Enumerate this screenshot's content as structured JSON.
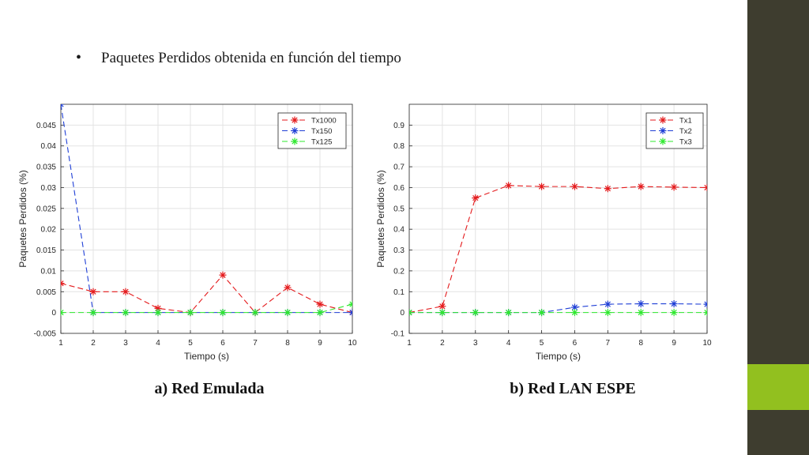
{
  "slide": {
    "bullet_symbol": "•",
    "bullet_text": "Paquetes Perdidos obtenida en función del tiempo",
    "caption_left": "a) Red Emulada",
    "caption_right": "b) Red LAN ESPE",
    "colors": {
      "sidebar": "#3e3d2f",
      "accent": "#92c01f"
    }
  },
  "chart_data": [
    {
      "type": "line",
      "title": "",
      "xlabel": "Tiempo (s)",
      "ylabel": "Paquetes Perdidos (%)",
      "xlim": [
        1,
        10
      ],
      "ylim": [
        -0.005,
        0.05
      ],
      "xticks": [
        1,
        2,
        3,
        4,
        5,
        6,
        7,
        8,
        9,
        10
      ],
      "yticks": [
        -0.005,
        0,
        0.005,
        0.01,
        0.015,
        0.02,
        0.025,
        0.03,
        0.035,
        0.04,
        0.045
      ],
      "ytick_labels": [
        "-0.005",
        "0",
        "0.005",
        "0.01",
        "0.015",
        "0.02",
        "0.025",
        "0.03",
        "0.035",
        "0.04",
        "0.045"
      ],
      "grid": true,
      "legend_position": "top-right",
      "x": [
        1,
        2,
        3,
        4,
        5,
        6,
        7,
        8,
        9,
        10
      ],
      "series": [
        {
          "name": "Tx1000",
          "color": "#e41a1c",
          "values": [
            0.007,
            0.005,
            0.005,
            0.001,
            0,
            0.009,
            0,
            0.006,
            0.002,
            0
          ]
        },
        {
          "name": "Tx150",
          "color": "#1f3fd6",
          "values": [
            0.05,
            0,
            0,
            0,
            0,
            0,
            0,
            0,
            0,
            0
          ]
        },
        {
          "name": "Tx125",
          "color": "#2ee82e",
          "values": [
            0,
            0,
            0,
            0,
            0,
            0,
            0,
            0,
            0,
            0.002
          ]
        }
      ]
    },
    {
      "type": "line",
      "title": "",
      "xlabel": "Tiempo (s)",
      "ylabel": "Paquetes Perdidos (%)",
      "xlim": [
        1,
        10
      ],
      "ylim": [
        -0.1,
        1.0
      ],
      "xticks": [
        1,
        2,
        3,
        4,
        5,
        6,
        7,
        8,
        9,
        10
      ],
      "yticks": [
        -0.1,
        0,
        0.1,
        0.2,
        0.3,
        0.4,
        0.5,
        0.6,
        0.7,
        0.8,
        0.9
      ],
      "ytick_labels": [
        "-0.1",
        "0",
        "0.1",
        "0.2",
        "0.3",
        "0.4",
        "0.5",
        "0.6",
        "0.7",
        "0.8",
        "0.9"
      ],
      "grid": true,
      "legend_position": "top-right",
      "x": [
        1,
        2,
        3,
        4,
        5,
        6,
        7,
        8,
        9,
        10
      ],
      "series": [
        {
          "name": "Tx1",
          "color": "#e41a1c",
          "values": [
            0,
            0.03,
            0.55,
            0.61,
            0.605,
            0.605,
            0.595,
            0.605,
            0.602,
            0.6
          ]
        },
        {
          "name": "Tx2",
          "color": "#1f3fd6",
          "values": [
            0,
            0,
            0,
            0,
            0,
            0.025,
            0.04,
            0.042,
            0.042,
            0.04
          ]
        },
        {
          "name": "Tx3",
          "color": "#2ee82e",
          "values": [
            0,
            0,
            0,
            0,
            0,
            0,
            0,
            0,
            0,
            0
          ]
        }
      ]
    }
  ]
}
